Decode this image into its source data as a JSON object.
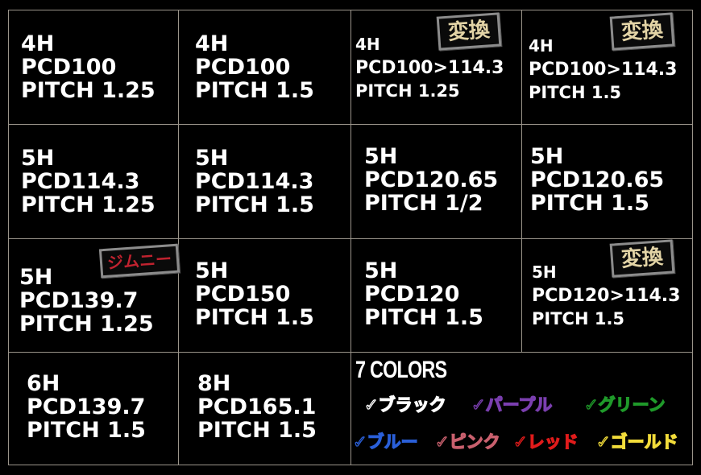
{
  "cells": [
    {
      "lines": [
        "4H",
        "PCD100",
        "PITCH 1.25"
      ]
    },
    {
      "lines": [
        "4H",
        "PCD100",
        "PITCH 1.5"
      ]
    },
    {
      "lines": [
        "4H",
        "PCD100>114.3",
        "PITCH 1.25"
      ],
      "badge": "変換"
    },
    {
      "lines": [
        "4H",
        "PCD100>114.3",
        "PITCH 1.5"
      ],
      "badge": "変換"
    },
    {
      "lines": [
        "5H",
        "PCD114.3",
        "PITCH 1.25"
      ]
    },
    {
      "lines": [
        "5H",
        "PCD114.3",
        "PITCH 1.5"
      ]
    },
    {
      "lines": [
        "5H",
        "PCD120.65",
        "PITCH 1/2"
      ]
    },
    {
      "lines": [
        "5H",
        "PCD120.65",
        "PITCH 1.5"
      ]
    },
    {
      "lines": [
        "5H",
        "PCD139.7",
        "PITCH 1.25"
      ],
      "badge": "ジムニー"
    },
    {
      "lines": [
        "5H",
        "PCD150",
        "PITCH 1.5"
      ]
    },
    {
      "lines": [
        "5H",
        "PCD120",
        "PITCH 1.5"
      ]
    },
    {
      "lines": [
        "5H",
        "PCD120>114.3",
        "PITCH 1.5"
      ],
      "badge": "変換"
    },
    {
      "lines": [
        "6H",
        "PCD139.7",
        "PITCH 1.5"
      ]
    },
    {
      "lines": [
        "8H",
        "PCD165.1",
        "PITCH 1.5"
      ]
    }
  ],
  "colors": {
    "title": "7 COLORS",
    "items": [
      {
        "label": "✓ブラック",
        "color": "#ffffff"
      },
      {
        "label": "✓パープル",
        "color": "#7b3fb0"
      },
      {
        "label": "✓グリーン",
        "color": "#1f9a2a"
      },
      {
        "label": "✓ブルー",
        "color": "#2a5fd8"
      },
      {
        "label": "✓ピンク",
        "color": "#c9606e"
      },
      {
        "label": "✓レッド",
        "color": "#e01b1b"
      },
      {
        "label": "✓ゴールド",
        "color": "#f2dc3a"
      }
    ]
  }
}
